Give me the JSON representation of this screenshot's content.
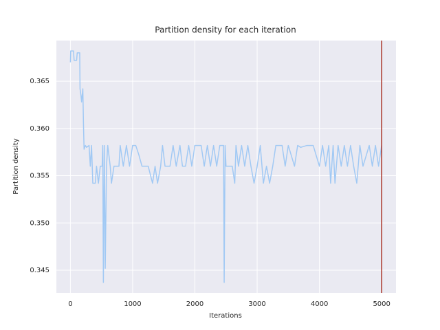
{
  "chart_data": {
    "type": "line",
    "title": "Partition density for each iteration",
    "xlabel": "Iterations",
    "ylabel": "Partition density",
    "x": [
      0,
      5,
      50,
      60,
      100,
      110,
      150,
      155,
      170,
      180,
      200,
      210,
      220,
      240,
      260,
      300,
      320,
      340,
      360,
      400,
      420,
      450,
      480,
      510,
      520,
      530,
      545,
      560,
      580,
      600,
      640,
      660,
      700,
      780,
      800,
      850,
      900,
      950,
      1000,
      1050,
      1100,
      1150,
      1200,
      1250,
      1320,
      1360,
      1400,
      1450,
      1480,
      1520,
      1600,
      1650,
      1700,
      1760,
      1800,
      1850,
      1900,
      1950,
      2000,
      2100,
      2150,
      2200,
      2250,
      2300,
      2350,
      2400,
      2460,
      2470,
      2485,
      2500,
      2550,
      2600,
      2640,
      2660,
      2700,
      2750,
      2800,
      2850,
      2900,
      2950,
      3000,
      3050,
      3100,
      3150,
      3200,
      3250,
      3300,
      3400,
      3450,
      3500,
      3600,
      3650,
      3700,
      3800,
      3900,
      4000,
      4050,
      4100,
      4150,
      4180,
      4220,
      4250,
      4300,
      4350,
      4400,
      4450,
      4500,
      4550,
      4600,
      4650,
      4700,
      4800,
      4850,
      4900,
      4950,
      4999
    ],
    "series": [
      {
        "color": "#a1c9f4",
        "values": [
          0.367,
          0.3682,
          0.3682,
          0.3672,
          0.3672,
          0.368,
          0.368,
          0.3642,
          0.3635,
          0.3628,
          0.3642,
          0.3605,
          0.3578,
          0.3582,
          0.358,
          0.3582,
          0.356,
          0.3582,
          0.3542,
          0.3542,
          0.356,
          0.3542,
          0.356,
          0.356,
          0.3582,
          0.3437,
          0.3582,
          0.3452,
          0.356,
          0.3582,
          0.356,
          0.3542,
          0.356,
          0.356,
          0.3582,
          0.356,
          0.3582,
          0.356,
          0.3582,
          0.3582,
          0.3572,
          0.356,
          0.356,
          0.356,
          0.3542,
          0.356,
          0.3542,
          0.356,
          0.3582,
          0.356,
          0.356,
          0.3582,
          0.356,
          0.3582,
          0.356,
          0.356,
          0.3582,
          0.356,
          0.3582,
          0.3582,
          0.356,
          0.3582,
          0.356,
          0.3582,
          0.356,
          0.3582,
          0.3582,
          0.3437,
          0.3582,
          0.356,
          0.356,
          0.356,
          0.3542,
          0.3582,
          0.356,
          0.3582,
          0.356,
          0.3582,
          0.356,
          0.3542,
          0.356,
          0.3582,
          0.3542,
          0.356,
          0.3542,
          0.356,
          0.3582,
          0.3582,
          0.356,
          0.3582,
          0.356,
          0.3582,
          0.358,
          0.3582,
          0.3582,
          0.356,
          0.3582,
          0.356,
          0.3582,
          0.3542,
          0.3582,
          0.3542,
          0.3582,
          0.356,
          0.3582,
          0.356,
          0.3582,
          0.356,
          0.3542,
          0.3582,
          0.356,
          0.3582,
          0.356,
          0.3582,
          0.356,
          0.3582
        ]
      }
    ],
    "vline": {
      "x": 5000,
      "color": "#a93226"
    },
    "xlim": [
      -225,
      5230
    ],
    "ylim": [
      0.3426,
      0.3693
    ],
    "xticks": [
      0,
      1000,
      2000,
      3000,
      4000,
      5000
    ],
    "yticks": [
      0.345,
      {
        "value": 0.35,
        "label": "0.350"
      },
      0.355,
      {
        "value": 0.36,
        "label": "0.360"
      },
      0.365
    ],
    "grid": true,
    "background": "#eaeaf2"
  }
}
